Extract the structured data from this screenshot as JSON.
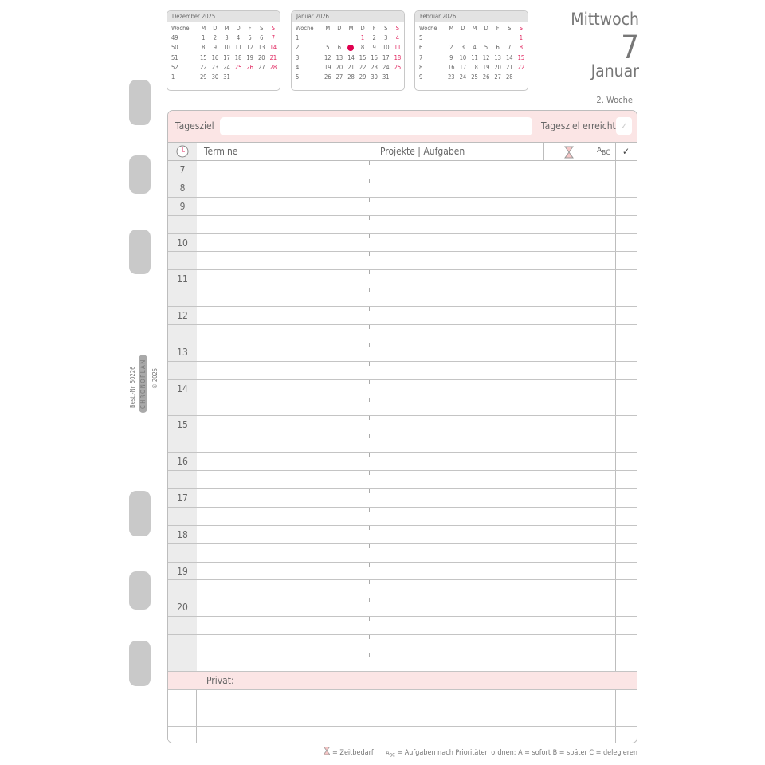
{
  "side": {
    "order_no": "Best.-Nr. 50226",
    "brand": "CHRONOPLAN",
    "copyright": "© 2025"
  },
  "calendars": [
    {
      "title": "Dezember 2025",
      "head": [
        "Woche",
        "M",
        "D",
        "M",
        "D",
        "F",
        "S",
        "S"
      ],
      "rows": [
        [
          "49",
          "1",
          "2",
          "3",
          "4",
          "5",
          "6",
          "7"
        ],
        [
          "50",
          "8",
          "9",
          "10",
          "11",
          "12",
          "13",
          "14"
        ],
        [
          "51",
          "15",
          "16",
          "17",
          "18",
          "19",
          "20",
          "21"
        ],
        [
          "52",
          "22",
          "23",
          "24",
          "25",
          "26",
          "27",
          "28"
        ],
        [
          "1",
          "29",
          "30",
          "31",
          "",
          "",
          "",
          ""
        ]
      ],
      "red": [
        "7",
        "14",
        "21",
        "25",
        "26",
        "28"
      ]
    },
    {
      "title": "Januar 2026",
      "head": [
        "Woche",
        "M",
        "D",
        "M",
        "D",
        "F",
        "S",
        "S"
      ],
      "rows": [
        [
          "1",
          "",
          "",
          "",
          "1",
          "2",
          "3",
          "4"
        ],
        [
          "2",
          "5",
          "6",
          "7",
          "8",
          "9",
          "10",
          "11"
        ],
        [
          "3",
          "12",
          "13",
          "14",
          "15",
          "16",
          "17",
          "18"
        ],
        [
          "4",
          "19",
          "20",
          "21",
          "22",
          "23",
          "24",
          "25"
        ],
        [
          "5",
          "26",
          "27",
          "28",
          "29",
          "30",
          "31",
          ""
        ]
      ],
      "red": [
        "1",
        "4",
        "11",
        "18",
        "25"
      ],
      "today": "7"
    },
    {
      "title": "Februar 2026",
      "head": [
        "Woche",
        "M",
        "D",
        "M",
        "D",
        "F",
        "S",
        "S"
      ],
      "rows": [
        [
          "5",
          "",
          "",
          "",
          "",
          "",
          "",
          "1"
        ],
        [
          "6",
          "2",
          "3",
          "4",
          "5",
          "6",
          "7",
          "8"
        ],
        [
          "7",
          "9",
          "10",
          "11",
          "12",
          "13",
          "14",
          "15"
        ],
        [
          "8",
          "16",
          "17",
          "18",
          "19",
          "20",
          "21",
          "22"
        ],
        [
          "9",
          "23",
          "24",
          "25",
          "26",
          "27",
          "28",
          ""
        ]
      ],
      "red": [
        "1",
        "8",
        "15",
        "22"
      ]
    }
  ],
  "date": {
    "weekday": "Mittwoch",
    "day": "7",
    "month": "Januar",
    "week": "2. Woche"
  },
  "goal": {
    "label": "Tagesziel",
    "question": "Tageszielerreicht?",
    "check": "✓"
  },
  "columns": {
    "time_icon": "clock-icon",
    "appointments": "Termine",
    "projects": "Projekte | Aufgaben",
    "duration_icon": "hourglass-icon",
    "priority": "ABC",
    "done": "✓"
  },
  "rows": [
    "7",
    "8",
    "9",
    "",
    "10",
    "",
    "11",
    "",
    "12",
    "",
    "13",
    "",
    "14",
    "",
    "15",
    "",
    "16",
    "",
    "17",
    "",
    "18",
    "",
    "19",
    "",
    "20",
    "",
    "",
    ""
  ],
  "private": {
    "label": "Privat:",
    "rows": 3
  },
  "legend": {
    "duration": "= Zeitbedarf",
    "priority": "= Aufgaben nach Prioritäten ordnen: A = sofort   B = später   C = delegieren"
  },
  "colors": {
    "accent": "#e0245e",
    "pink_bg": "#fbe5e5",
    "time_col": "#ececec"
  }
}
